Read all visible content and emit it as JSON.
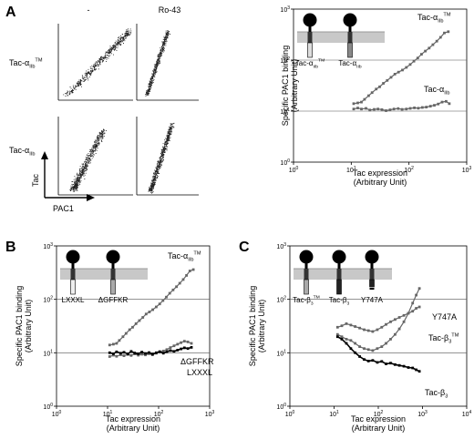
{
  "panels": {
    "A": {
      "letter": "A",
      "flow": {
        "col_headers": [
          "-",
          "Ro-43"
        ],
        "row_labels": [
          {
            "main": "Tac-α",
            "sub": "IIb",
            "sup": "TM"
          },
          {
            "main": "Tac-α",
            "sub": "IIb",
            "sup": ""
          }
        ],
        "y_axis_label": "Tac",
        "x_axis_label": "PAC1"
      }
    },
    "B": {
      "letter": "B"
    },
    "C": {
      "letter": "C"
    }
  },
  "chart_data": [
    {
      "id": "A",
      "type": "line",
      "x_scale": "log",
      "y_scale": "log",
      "xlim": [
        1,
        1000
      ],
      "ylim": [
        1,
        1000
      ],
      "x_ticks": [
        1,
        10,
        100,
        1000
      ],
      "y_ticks": [
        1,
        10,
        100,
        1000
      ],
      "x_tick_labels": [
        {
          "b": "10",
          "e": "0"
        },
        {
          "b": "10",
          "e": "1"
        },
        {
          "b": "10",
          "e": "2"
        },
        {
          "b": "10",
          "e": "3"
        }
      ],
      "y_tick_labels": [
        {
          "b": "10",
          "e": "0"
        },
        {
          "b": "10",
          "e": "1"
        },
        {
          "b": "10",
          "e": "2"
        },
        {
          "b": "10",
          "e": "3"
        }
      ],
      "hlines": [
        10,
        100
      ],
      "xlabel": [
        "Tac expression",
        "(Arbitrary Unit)"
      ],
      "ylabel": [
        "Specific PAC1 binding",
        "(Arbitrary Unit)"
      ],
      "inset_labels": [
        {
          "main": "Tac-α",
          "sub": "IIb",
          "sup": "TM"
        },
        {
          "main": "Tac-α",
          "sub": "IIb",
          "sup": ""
        }
      ],
      "series": [
        {
          "label": {
            "main": "Tac-α",
            "sub": "IIb",
            "sup": "TM"
          },
          "color": "#666666",
          "x": [
            11,
            13,
            15,
            17,
            20,
            23,
            27,
            31,
            36,
            42,
            49,
            57,
            66,
            77,
            90,
            105,
            122,
            142,
            165,
            192,
            224,
            260,
            303,
            352,
            410,
            480
          ],
          "y": [
            14,
            14.5,
            15,
            17,
            20,
            23,
            27,
            30,
            35,
            40,
            46,
            53,
            58,
            64,
            72,
            82,
            95,
            110,
            130,
            150,
            172,
            200,
            235,
            280,
            340,
            360
          ]
        },
        {
          "label": {
            "main": "Tac-α",
            "sub": "IIb",
            "sup": ""
          },
          "color": "#666666",
          "x": [
            11,
            13,
            15,
            18,
            21,
            25,
            29,
            34,
            40,
            47,
            55,
            65,
            76,
            90,
            105,
            124,
            145,
            170,
            200,
            235,
            275,
            320,
            375,
            440,
            500
          ],
          "y": [
            11,
            11.5,
            11,
            11.3,
            10.5,
            10.8,
            11,
            10.7,
            10.2,
            10.6,
            11,
            11.2,
            10.8,
            11,
            11.3,
            11.6,
            11.4,
            11.8,
            12,
            12.5,
            13,
            13.8,
            15,
            15.5,
            14
          ]
        }
      ]
    },
    {
      "id": "B",
      "type": "line",
      "x_scale": "log",
      "y_scale": "log",
      "xlim": [
        1,
        1000
      ],
      "ylim": [
        1,
        1000
      ],
      "x_ticks": [
        1,
        10,
        100,
        1000
      ],
      "y_ticks": [
        1,
        10,
        100,
        1000
      ],
      "x_tick_labels": [
        {
          "b": "10",
          "e": "0"
        },
        {
          "b": "10",
          "e": "1"
        },
        {
          "b": "10",
          "e": "2"
        },
        {
          "b": "10",
          "e": "3"
        }
      ],
      "y_tick_labels": [
        {
          "b": "10",
          "e": "0"
        },
        {
          "b": "10",
          "e": "1"
        },
        {
          "b": "10",
          "e": "2"
        },
        {
          "b": "10",
          "e": "3"
        }
      ],
      "hlines": [
        10,
        100
      ],
      "xlabel": [
        "Tac expression",
        "(Arbitrary Unit)"
      ],
      "ylabel": [
        "Specific PAC1 binding",
        "(Arbitrary Unit)"
      ],
      "inset_labels": [
        {
          "main": "LXXXL",
          "sub": "",
          "sup": ""
        },
        {
          "main": "ΔGFFKR",
          "sub": "",
          "sup": ""
        }
      ],
      "series": [
        {
          "label": {
            "main": "Tac-α",
            "sub": "IIb",
            "sup": "TM"
          },
          "color": "#666666",
          "x": [
            11,
            13,
            15,
            17,
            20,
            23,
            27,
            31,
            36,
            42,
            49,
            57,
            66,
            77,
            90,
            105,
            122,
            142,
            165,
            192,
            224,
            260,
            303,
            352,
            410,
            480
          ],
          "y": [
            14,
            14.5,
            15,
            17,
            20,
            23,
            27,
            30,
            35,
            40,
            46,
            53,
            58,
            64,
            72,
            82,
            95,
            110,
            130,
            150,
            172,
            200,
            235,
            280,
            340,
            360
          ]
        },
        {
          "label": {
            "main": "ΔGFFKR",
            "sub": "",
            "sup": ""
          },
          "color": "#666666",
          "x": [
            11,
            13,
            15,
            18,
            21,
            25,
            29,
            34,
            40,
            47,
            55,
            65,
            76,
            90,
            105,
            124,
            145,
            170,
            200,
            235,
            275,
            320,
            375,
            440
          ],
          "y": [
            8.5,
            9,
            8.6,
            9.2,
            8.8,
            9.3,
            8.9,
            9.5,
            9,
            9.4,
            9.1,
            9.6,
            9.2,
            9.8,
            10.3,
            10.8,
            11.5,
            12.5,
            13.5,
            14.5,
            15.5,
            16.5,
            16,
            15
          ]
        },
        {
          "label": {
            "main": "LXXXL",
            "sub": "",
            "sup": ""
          },
          "color": "#000000",
          "x": [
            11,
            13,
            15,
            18,
            21,
            25,
            29,
            34,
            40,
            47,
            55,
            65,
            76,
            90,
            105,
            124,
            145,
            170,
            200,
            235,
            275,
            320,
            375,
            440
          ],
          "y": [
            10,
            9.6,
            10.4,
            9.8,
            10.2,
            9.5,
            10.6,
            9.9,
            9.6,
            10.3,
            9.7,
            10.1,
            9.4,
            10,
            10.5,
            9.8,
            10.4,
            11,
            10.6,
            11.2,
            11.8,
            12.4,
            12,
            12.6
          ]
        }
      ]
    },
    {
      "id": "C",
      "type": "line",
      "x_scale": "log",
      "y_scale": "log",
      "xlim": [
        1,
        10000
      ],
      "ylim": [
        1,
        1000
      ],
      "x_ticks": [
        1,
        10,
        100,
        1000,
        10000
      ],
      "y_ticks": [
        1,
        10,
        100,
        1000
      ],
      "x_tick_labels": [
        {
          "b": "10",
          "e": "0"
        },
        {
          "b": "10",
          "e": "1"
        },
        {
          "b": "10",
          "e": "2"
        },
        {
          "b": "10",
          "e": "3"
        },
        {
          "b": "10",
          "e": "4"
        }
      ],
      "y_tick_labels": [
        {
          "b": "10",
          "e": "0"
        },
        {
          "b": "10",
          "e": "1"
        },
        {
          "b": "10",
          "e": "2"
        },
        {
          "b": "10",
          "e": "3"
        }
      ],
      "hlines": [
        10,
        100
      ],
      "xlabel": [
        "Tac expression",
        "(Arbitrary Unit)"
      ],
      "ylabel": [
        "Specific PAC1 binding",
        "(Arbitrary Unit)"
      ],
      "inset_labels": [
        {
          "main": "Tac-β",
          "sub": "3",
          "sup": "TM"
        },
        {
          "main": "Tac-β",
          "sub": "3",
          "sup": ""
        },
        {
          "main": "Y747A",
          "sub": "",
          "sup": ""
        }
      ],
      "series": [
        {
          "label": {
            "main": "Y747A",
            "sub": "",
            "sup": ""
          },
          "color": "#666666",
          "x": [
            12,
            15,
            19,
            24,
            30,
            38,
            48,
            60,
            75,
            95,
            120,
            150,
            190,
            240,
            300,
            380,
            480,
            600,
            720,
            850
          ],
          "y": [
            22,
            20,
            18,
            17,
            15,
            13,
            12,
            11.5,
            11,
            12,
            13,
            15,
            18,
            22,
            28,
            38,
            55,
            85,
            120,
            160
          ]
        },
        {
          "label": {
            "main": "Tac-β",
            "sub": "3",
            "sup": "TM"
          },
          "color": "#666666",
          "x": [
            12,
            15,
            19,
            24,
            30,
            38,
            48,
            60,
            75,
            95,
            120,
            150,
            190,
            240,
            300,
            380,
            480,
            600,
            720,
            850
          ],
          "y": [
            30,
            32,
            35,
            33,
            31,
            29,
            27,
            26,
            25,
            27,
            30,
            34,
            38,
            42,
            46,
            50,
            55,
            60,
            68,
            72
          ]
        },
        {
          "label": {
            "main": "Tac-β",
            "sub": "3",
            "sup": ""
          },
          "color": "#000000",
          "x": [
            12,
            15,
            19,
            24,
            30,
            38,
            48,
            60,
            75,
            95,
            120,
            150,
            190,
            240,
            300,
            380,
            480,
            600,
            720,
            850
          ],
          "y": [
            20,
            18,
            15,
            12,
            10,
            8.5,
            7.5,
            7,
            7.2,
            6.6,
            6.9,
            6.2,
            6.4,
            6,
            5.8,
            5.6,
            5.3,
            5.2,
            4.8,
            4.5
          ]
        }
      ]
    }
  ]
}
